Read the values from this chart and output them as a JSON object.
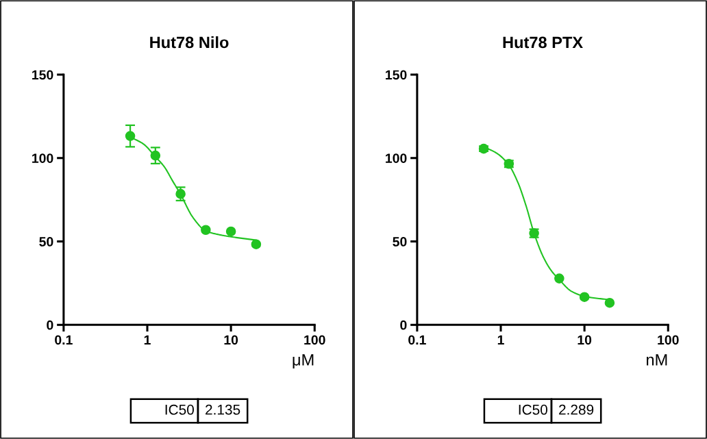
{
  "chart_data": [
    {
      "type": "scatter",
      "title": "Hut78 Nilo",
      "xlabel": "μM",
      "log": "x",
      "xlim": [
        0.1,
        100
      ],
      "xticks": [
        0.1,
        1,
        10,
        100
      ],
      "ylim": [
        0,
        150
      ],
      "yticks": [
        0,
        50,
        100,
        150
      ],
      "grid": false,
      "x": [
        0.625,
        1.25,
        2.5,
        5,
        10,
        20
      ],
      "series": [
        {
          "color": "#22c322",
          "marker": "circle",
          "values": [
            113.2,
            101.5,
            78.5,
            56.9,
            56,
            48.3
          ],
          "errors": [
            6.5,
            4.8,
            4,
            null,
            null,
            null
          ]
        },
        {
          "type": "line",
          "marker": "none",
          "color": "#22c322",
          "x": [
            0.625,
            0.9,
            1.25,
            1.6,
            2,
            2.5,
            3.5,
            5,
            7,
            10,
            20
          ],
          "values": [
            112.6,
            108.4,
            100.8,
            94.7,
            86.4,
            78.2,
            64.5,
            56.3,
            54.2,
            52.8,
            50.8
          ]
        }
      ],
      "annotations": [
        "IC50",
        "2.135"
      ]
    },
    {
      "type": "scatter",
      "title": "Hut78 PTX",
      "xlabel": "nM",
      "log": "x",
      "xlim": [
        0.1,
        100
      ],
      "xticks": [
        0.1,
        1,
        10,
        100
      ],
      "ylim": [
        0,
        150
      ],
      "yticks": [
        0,
        50,
        100,
        150
      ],
      "grid": false,
      "x": [
        0.625,
        1.25,
        2.5,
        5,
        10,
        20
      ],
      "series": [
        {
          "color": "#22c322",
          "marker": "circle",
          "values": [
            105.6,
            96.5,
            54.9,
            27.8,
            16.7,
            13.2
          ],
          "errors": [
            1.5,
            2,
            2.5,
            null,
            null,
            null
          ]
        },
        {
          "type": "line",
          "marker": "none",
          "color": "#22c322",
          "x": [
            0.625,
            0.9,
            1.25,
            1.6,
            2,
            2.5,
            3.2,
            4,
            5,
            7,
            10,
            20
          ],
          "values": [
            106.7,
            102.8,
            95.8,
            85.4,
            71.5,
            54.9,
            41,
            32.6,
            27.1,
            20.1,
            17.1,
            15
          ]
        }
      ],
      "annotations": [
        "IC50",
        "2.289"
      ]
    }
  ]
}
